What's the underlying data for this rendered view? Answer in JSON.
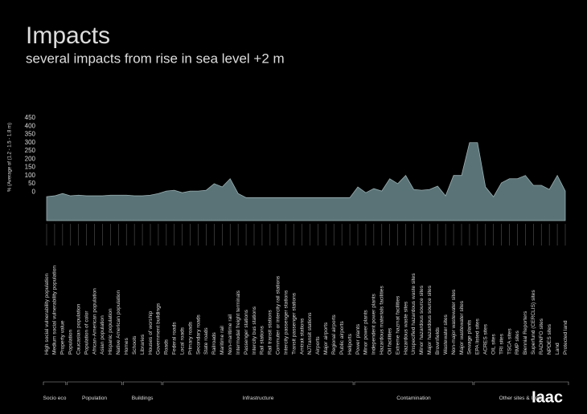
{
  "chart_data": {
    "type": "area",
    "title": "Impacts",
    "subtitle": "several impacts from rise in sea level +2 m",
    "y_label": "% (Average of (1.2 - 1.5 - 1.8 m)",
    "logo": "Iaac",
    "categories": [
      "High social vulnerability population",
      "Medium social vulnerability population",
      "Property value",
      "Population",
      "Caucasian population",
      "Population of color",
      "African-American population",
      "Asian population",
      "Hispanic population",
      "Native American population",
      "Homes",
      "Schools",
      "Libraries",
      "Houses of worship",
      "Government buildings",
      "Roads",
      "Federal roads",
      "Local roads",
      "Primary roads",
      "Secondary roads",
      "State roads",
      "Railroads",
      "Maritime rail",
      "Non-maritime rail",
      "Intermodal freight terminals",
      "Passenger stations",
      "Intercity bus stations",
      "Rail stations",
      "Rail transit stations",
      "Commuter or intercity rail stations",
      "Intercity passenger stations",
      "Transit passenger stations",
      "Amtrak stations",
      "NJTransit stations",
      "Airports",
      "Major airports",
      "Regional airports",
      "Public airports",
      "Heliports",
      "Power plants",
      "Minor power plants",
      "Independent power plants",
      "Hazardous materials facilities",
      "Oil facilities",
      "Extreme hazmat facilities",
      "Hazardous waste sites",
      "Unspecified hazardous waste sites",
      "Minor hazardous source sites",
      "Major hazardous source sites",
      "Brownfields",
      "Wastewater sites",
      "Non-major wastewater sites",
      "Major wastewater sites",
      "Sewage plants",
      "EPA listed sites",
      "ACRES sites",
      "OIL sites",
      "TRI sites",
      "TSCA sites",
      "RMP sites",
      "Biennial Reporters",
      "Superfund (CERCLIS) sites",
      "RADINFO sites",
      "NPDES sites",
      "Land",
      "Protected land"
    ],
    "values": [
      -29,
      -24,
      -10,
      -24,
      -20,
      -24,
      -24,
      -24,
      -20,
      -20,
      -20,
      -24,
      -24,
      -20,
      -10,
      5,
      10,
      -5,
      5,
      5,
      10,
      50,
      30,
      80,
      -10,
      -35,
      -35,
      -35,
      -35,
      -35,
      -35,
      -35,
      -35,
      -35,
      -35,
      -35,
      -35,
      -35,
      -35,
      30,
      -5,
      20,
      5,
      80,
      50,
      100,
      15,
      10,
      15,
      35,
      -24,
      100,
      100,
      300,
      300,
      30,
      -30,
      55,
      80,
      80,
      100,
      40,
      40,
      15,
      100,
      5
    ],
    "label_colors": [
      "#ddd",
      "#ddd",
      "#ddd",
      "#ddd",
      "#ddd",
      "#ddd",
      "#ddd",
      "#ddd",
      "#ddd",
      "#ddd",
      "#ddd",
      "#ddd",
      "#ddd",
      "#ddd",
      "#ddd",
      "#ddd",
      "#ddd",
      "#ddd",
      "#ddd",
      "#ddd",
      "#ddd",
      "#ddd",
      "#ddd",
      "#ddd",
      "#ddd",
      "#ddd",
      "#ddd",
      "#ddd",
      "#ddd",
      "#ddd",
      "#ddd",
      "#ddd",
      "#ddd",
      "#ddd",
      "#ddd",
      "#ddd",
      "#ddd",
      "#ddd",
      "#ddd",
      "#ddd",
      "#ddd",
      "#ddd",
      "#ddd",
      "#ddd",
      "#ddd",
      "#b3302c",
      "#b3302c",
      "#b3302c",
      "#b3302c",
      "#b3302c",
      "#b3302c",
      "#b3302c",
      "#b3302c",
      "#ddd",
      "#ddd",
      "#ddd",
      "#ddd",
      "#ddd",
      "#ddd",
      "#ddd",
      "#ddd",
      "#ddd",
      "#ddd",
      "#ddd",
      "#ddd",
      "#ddd"
    ],
    "groups": [
      "Socio eco",
      "Population",
      "Buildings",
      "Infrastructure",
      "Contamination",
      "Other sites & lands"
    ],
    "color": "#5a7376",
    "line_color": "#9bb0b3",
    "ylim": [
      -175,
      450
    ],
    "yticks": [
      0,
      50,
      100,
      150,
      200,
      250,
      300,
      350,
      400,
      450
    ]
  }
}
